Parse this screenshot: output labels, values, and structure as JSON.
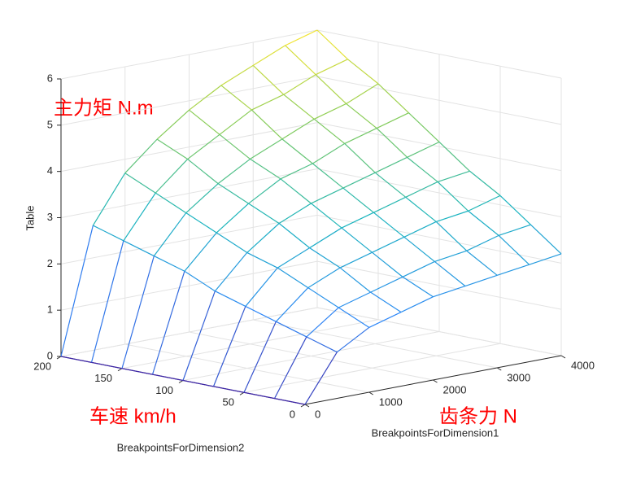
{
  "chart_data": {
    "type": "mesh3d",
    "xlabel": "BreakpointsForDimension1",
    "ylabel": "BreakpointsForDimension2",
    "zlabel": "Table",
    "annotations": [
      "主力矩 N.m",
      "车速 km/h",
      "齿条力 N"
    ],
    "x": [
      0,
      500,
      1000,
      1500,
      2000,
      2500,
      3000,
      3500,
      4000
    ],
    "y": [
      0,
      25,
      50,
      75,
      100,
      125,
      150,
      175,
      200
    ],
    "z": [
      [
        0,
        1.0,
        1.4,
        1.6,
        1.8,
        1.9,
        2.0,
        2.1,
        2.2
      ],
      [
        0,
        1.2,
        1.7,
        1.9,
        2.1,
        2.3,
        2.4,
        2.6,
        2.7
      ],
      [
        0,
        1.4,
        2.0,
        2.3,
        2.5,
        2.7,
        2.9,
        3.0,
        3.2
      ],
      [
        0,
        1.6,
        2.3,
        2.6,
        2.9,
        3.1,
        3.3,
        3.5,
        3.6
      ],
      [
        0,
        1.8,
        2.5,
        3.0,
        3.3,
        3.5,
        3.7,
        3.9,
        4.1
      ],
      [
        0,
        2.1,
        2.8,
        3.3,
        3.7,
        3.9,
        4.2,
        4.4,
        4.6
      ],
      [
        0,
        2.3,
        3.1,
        3.6,
        4.0,
        4.3,
        4.6,
        4.8,
        5.1
      ],
      [
        0,
        2.5,
        3.4,
        4.0,
        4.4,
        4.8,
        5.0,
        5.3,
        5.5
      ],
      [
        0,
        2.7,
        3.7,
        4.3,
        4.8,
        5.2,
        5.5,
        5.8,
        6.0
      ]
    ],
    "xlim": [
      0,
      4000
    ],
    "xticks": [
      0,
      1000,
      2000,
      3000,
      4000
    ],
    "ylim": [
      0,
      200
    ],
    "yticks": [
      0,
      50,
      100,
      150,
      200
    ],
    "zlim": [
      0,
      6
    ],
    "zticks": [
      0,
      1,
      2,
      3,
      4,
      5,
      6
    ],
    "grid": true,
    "colormap": "parula"
  }
}
